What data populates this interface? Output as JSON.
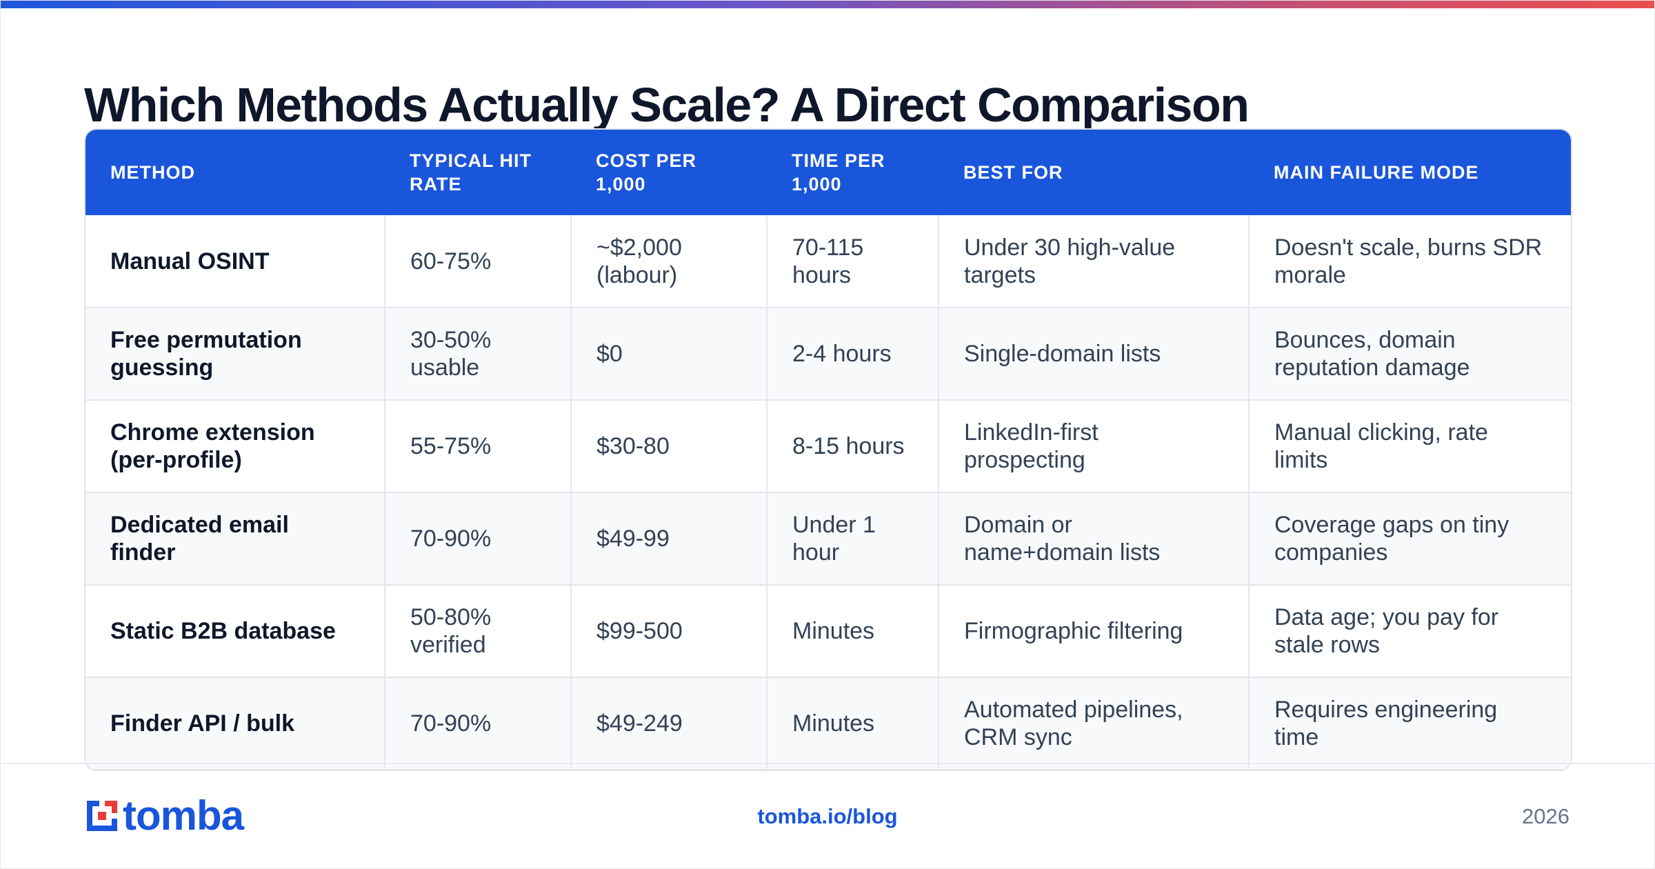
{
  "title": "Which Methods Actually Scale? A Direct Comparison",
  "table": {
    "headers": [
      "METHOD",
      "TYPICAL HIT RATE",
      "COST PER 1,000",
      "TIME PER 1,000",
      "BEST FOR",
      "MAIN FAILURE MODE"
    ],
    "rows": [
      [
        "Manual OSINT",
        "60-75%",
        "~$2,000 (labour)",
        "70-115 hours",
        "Under 30 high-value targets",
        "Doesn't scale, burns SDR morale"
      ],
      [
        "Free permutation guessing",
        "30-50% usable",
        "$0",
        "2-4 hours",
        "Single-domain lists",
        "Bounces, domain reputation damage"
      ],
      [
        "Chrome extension (per-profile)",
        "55-75%",
        "$30-80",
        "8-15 hours",
        "LinkedIn-first prospecting",
        "Manual clicking, rate limits"
      ],
      [
        "Dedicated email finder",
        "70-90%",
        "$49-99",
        "Under 1 hour",
        "Domain or name+domain lists",
        "Coverage gaps on tiny companies"
      ],
      [
        "Static B2B database",
        "50-80% verified",
        "$99-500",
        "Minutes",
        "Firmographic filtering",
        "Data age; you pay for stale rows"
      ],
      [
        "Finder API / bulk",
        "70-90%",
        "$49-249",
        "Minutes",
        "Automated pipelines, CRM sync",
        "Requires engineering time"
      ]
    ]
  },
  "footer": {
    "logo_text": "tomba",
    "link": "tomba.io/blog",
    "year": "2026"
  },
  "colors": {
    "brand_blue": "#1a56db",
    "accent_gradient_start": "#1f57dc",
    "accent_gradient_end": "#ea4e4e",
    "logo_red": "#ea3b3b"
  },
  "icons": {
    "logo": "tomba-logo-mark"
  }
}
